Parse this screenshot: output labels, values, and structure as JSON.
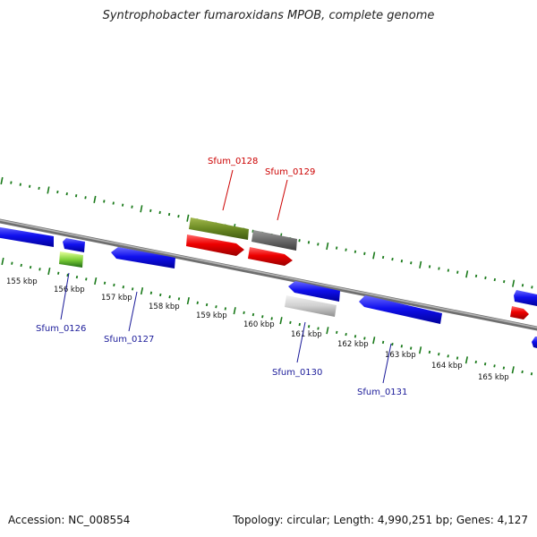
{
  "title": "Syntrophobacter fumaroxidans MPOB, complete genome",
  "footer": {
    "accession": "Accession: NC_008554",
    "summary": "Topology: circular; Length: 4,990,251 bp; Genes: 4,127"
  },
  "colors": {
    "backbone": "#8a8a8a",
    "tick": "#1a7a1a",
    "forward_gene": "#ee0000",
    "reverse_gene": "#1111ee",
    "label_top": "#cc0000",
    "label_bottom": "#1a1a99"
  },
  "scale_labels": [
    "155 kbp",
    "156 kbp",
    "157 kbp",
    "158 kbp",
    "159 kbp",
    "160 kbp",
    "161 kbp",
    "162 kbp",
    "163 kbp",
    "164 kbp",
    "165 kbp"
  ],
  "gene_labels": {
    "top": [
      "Sfum_0128",
      "Sfum_0129"
    ],
    "bottom": [
      "Sfum_0126",
      "Sfum_0127",
      "Sfum_0130",
      "Sfum_0131"
    ]
  }
}
